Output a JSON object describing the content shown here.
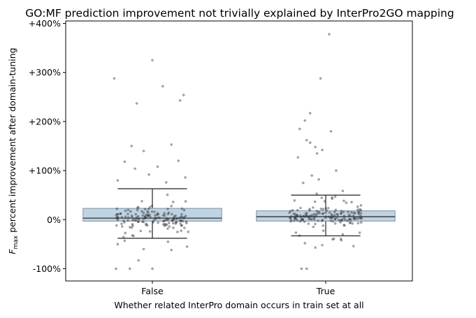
{
  "chart_data": {
    "type": "box",
    "title": "GO:MF prediction improvement not trivially explained by InterPro2GO mapping",
    "xlabel": "Whether related InterPro domain occurs in train set at all",
    "ylabel": {
      "prefix": "F",
      "subscript": "max",
      "suffix": " percent improvement after domain-tuning"
    },
    "categories": [
      "False",
      "True"
    ],
    "ylim": [
      -125,
      405
    ],
    "yticks": [
      -100,
      0,
      100,
      200,
      300,
      400
    ],
    "ytick_labels": [
      "-100%",
      "0%",
      "+100%",
      "+200%",
      "+300%",
      "+400%"
    ],
    "box_color": "#a9c4d8",
    "point_color": "#333333",
    "boxes": [
      {
        "category": "False",
        "q1": -3,
        "median": 3,
        "q3": 23,
        "whisker_low": -38,
        "whisker_high": 63
      },
      {
        "category": "True",
        "q1": -3,
        "median": 6,
        "q3": 18,
        "whisker_low": -33,
        "whisker_high": 50
      }
    ],
    "outliers": [
      {
        "category": "False",
        "points": [
          {
            "x": -0.22,
            "y": 288
          },
          {
            "x": 0.0,
            "y": 325
          },
          {
            "x": 0.06,
            "y": 272
          },
          {
            "x": 0.18,
            "y": 254
          },
          {
            "x": -0.09,
            "y": 237
          },
          {
            "x": 0.16,
            "y": 243
          },
          {
            "x": 0.11,
            "y": 153
          },
          {
            "x": -0.12,
            "y": 150
          },
          {
            "x": -0.05,
            "y": 140
          },
          {
            "x": 0.15,
            "y": 120
          },
          {
            "x": -0.16,
            "y": 118
          },
          {
            "x": -0.1,
            "y": 104
          },
          {
            "x": 0.03,
            "y": 108
          },
          {
            "x": -0.02,
            "y": 92
          },
          {
            "x": 0.19,
            "y": 86
          },
          {
            "x": -0.2,
            "y": 80
          },
          {
            "x": 0.08,
            "y": 76
          },
          {
            "x": -0.21,
            "y": -100
          },
          {
            "x": -0.13,
            "y": -100
          },
          {
            "x": 0.0,
            "y": -100
          },
          {
            "x": -0.08,
            "y": -83
          },
          {
            "x": 0.2,
            "y": -55
          },
          {
            "x": -0.2,
            "y": -50
          },
          {
            "x": 0.09,
            "y": -45
          },
          {
            "x": -0.16,
            "y": -43
          },
          {
            "x": 0.11,
            "y": -62
          },
          {
            "x": -0.05,
            "y": -60
          }
        ]
      },
      {
        "category": "True",
        "points": [
          {
            "x": 0.02,
            "y": 378
          },
          {
            "x": -0.03,
            "y": 288
          },
          {
            "x": -0.09,
            "y": 217
          },
          {
            "x": -0.12,
            "y": 202
          },
          {
            "x": -0.15,
            "y": 185
          },
          {
            "x": 0.03,
            "y": 180
          },
          {
            "x": -0.11,
            "y": 162
          },
          {
            "x": -0.09,
            "y": 157
          },
          {
            "x": -0.06,
            "y": 148
          },
          {
            "x": -0.02,
            "y": 142
          },
          {
            "x": -0.05,
            "y": 135
          },
          {
            "x": -0.16,
            "y": 127
          },
          {
            "x": 0.06,
            "y": 100
          },
          {
            "x": -0.08,
            "y": 90
          },
          {
            "x": -0.04,
            "y": 82
          },
          {
            "x": -0.13,
            "y": 75
          },
          {
            "x": -0.14,
            "y": -100
          },
          {
            "x": -0.11,
            "y": -100
          },
          {
            "x": -0.06,
            "y": -57
          },
          {
            "x": 0.16,
            "y": -54
          },
          {
            "x": -0.12,
            "y": -48
          },
          {
            "x": 0.09,
            "y": -42
          },
          {
            "x": -0.02,
            "y": -52
          },
          {
            "x": 0.04,
            "y": -40
          }
        ]
      }
    ]
  }
}
